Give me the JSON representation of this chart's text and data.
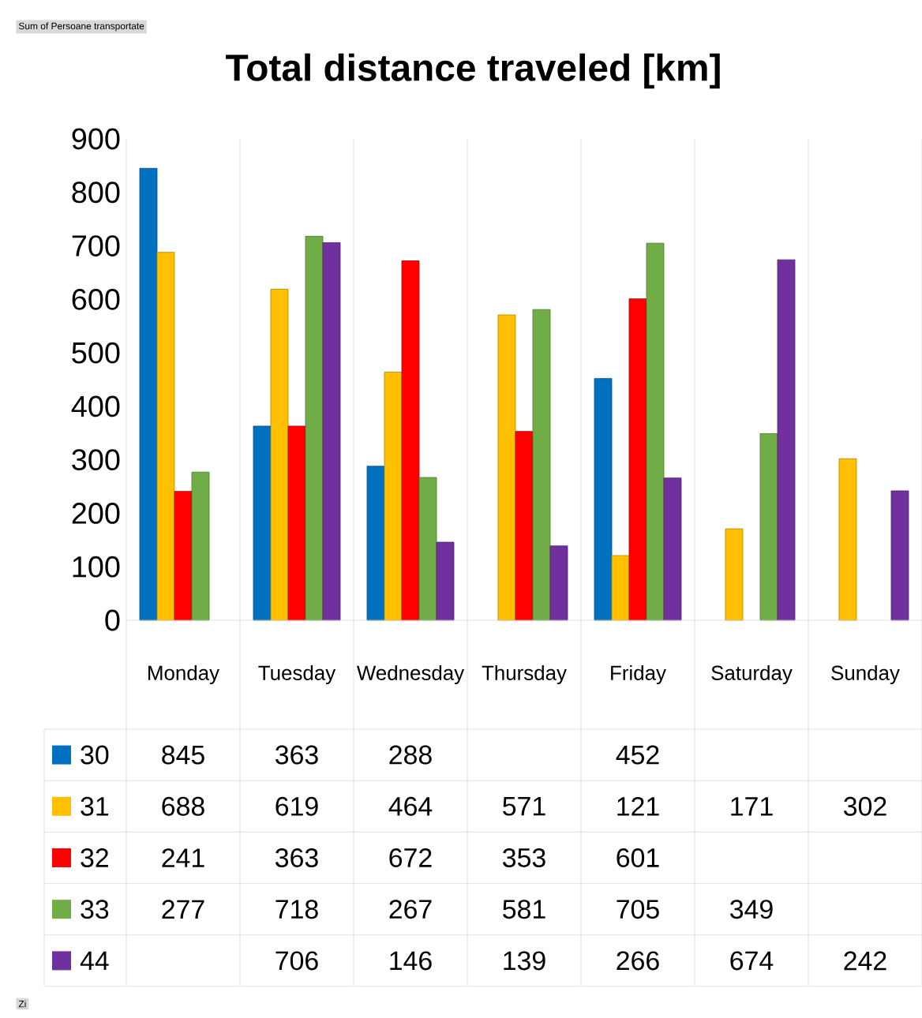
{
  "chart_data": {
    "type": "bar",
    "title": "Total distance traveled [km]",
    "categories": [
      "Monday",
      "Tuesday",
      "Wednesday",
      "Thursday",
      "Friday",
      "Saturday",
      "Sunday"
    ],
    "series": [
      {
        "name": "30",
        "color": "#0070c0",
        "values": [
          845,
          363,
          288,
          null,
          452,
          null,
          null
        ]
      },
      {
        "name": "31",
        "color": "#ffc000",
        "values": [
          688,
          619,
          464,
          571,
          121,
          171,
          302
        ]
      },
      {
        "name": "32",
        "color": "#ff0000",
        "values": [
          241,
          363,
          672,
          353,
          601,
          null,
          null
        ]
      },
      {
        "name": "33",
        "color": "#70ad47",
        "values": [
          277,
          718,
          267,
          581,
          705,
          349,
          null
        ]
      },
      {
        "name": "44",
        "color": "#7030a0",
        "values": [
          null,
          706,
          146,
          139,
          266,
          674,
          242
        ]
      }
    ],
    "ylim": [
      0,
      900
    ],
    "yticks": [
      0,
      100,
      200,
      300,
      400,
      500,
      600,
      700,
      800,
      900
    ],
    "data_labels": true,
    "legend": "bottom left",
    "annotations": [
      "Sum of Persoane transportate",
      "Zi"
    ]
  }
}
